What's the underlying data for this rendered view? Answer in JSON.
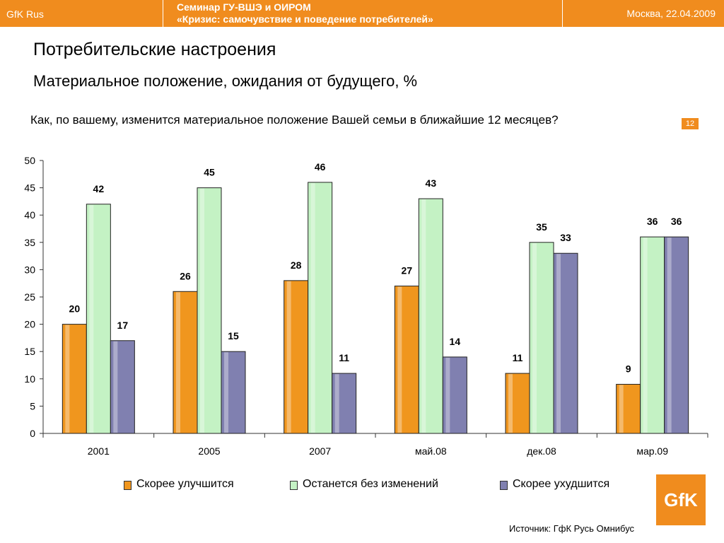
{
  "header": {
    "brand": "GfK Rus",
    "seminar_line1": "Семинар ГУ-ВШЭ и ОИРОМ",
    "seminar_line2": "«Кризис: самочувствие и поведение потребителей»",
    "place_date": "Москва, 22.04.2009",
    "accent_color": "#f08c1e"
  },
  "slide": {
    "title": "Потребительские настроения",
    "subtitle": "Материальное положение, ожидания от будущего, %",
    "question": "Как, по вашему, изменится материальное положение Вашей семьи в ближайшие 12 месяцев?",
    "slide_number": "12",
    "source": "Источник: ГфК Русь Омнибус",
    "logo_text": "GfK"
  },
  "chart_data": {
    "type": "bar",
    "categories": [
      "2001",
      "2005",
      "2007",
      "май.08",
      "дек.08",
      "мар.09"
    ],
    "series": [
      {
        "name": "Скорее улучшится",
        "values": [
          20,
          26,
          28,
          27,
          11,
          9
        ],
        "color": "#f0961e"
      },
      {
        "name": "Останется без изменений",
        "values": [
          42,
          45,
          46,
          43,
          35,
          36
        ],
        "color": "#c4f2c4"
      },
      {
        "name": "Скорее ухудшится",
        "values": [
          17,
          15,
          11,
          14,
          33,
          36
        ],
        "color": "#8080b0"
      }
    ],
    "ylim": [
      0,
      50
    ],
    "yticks": [
      0,
      5,
      10,
      15,
      20,
      25,
      30,
      35,
      40,
      45,
      50
    ],
    "grid": false,
    "legend_position": "bottom"
  }
}
